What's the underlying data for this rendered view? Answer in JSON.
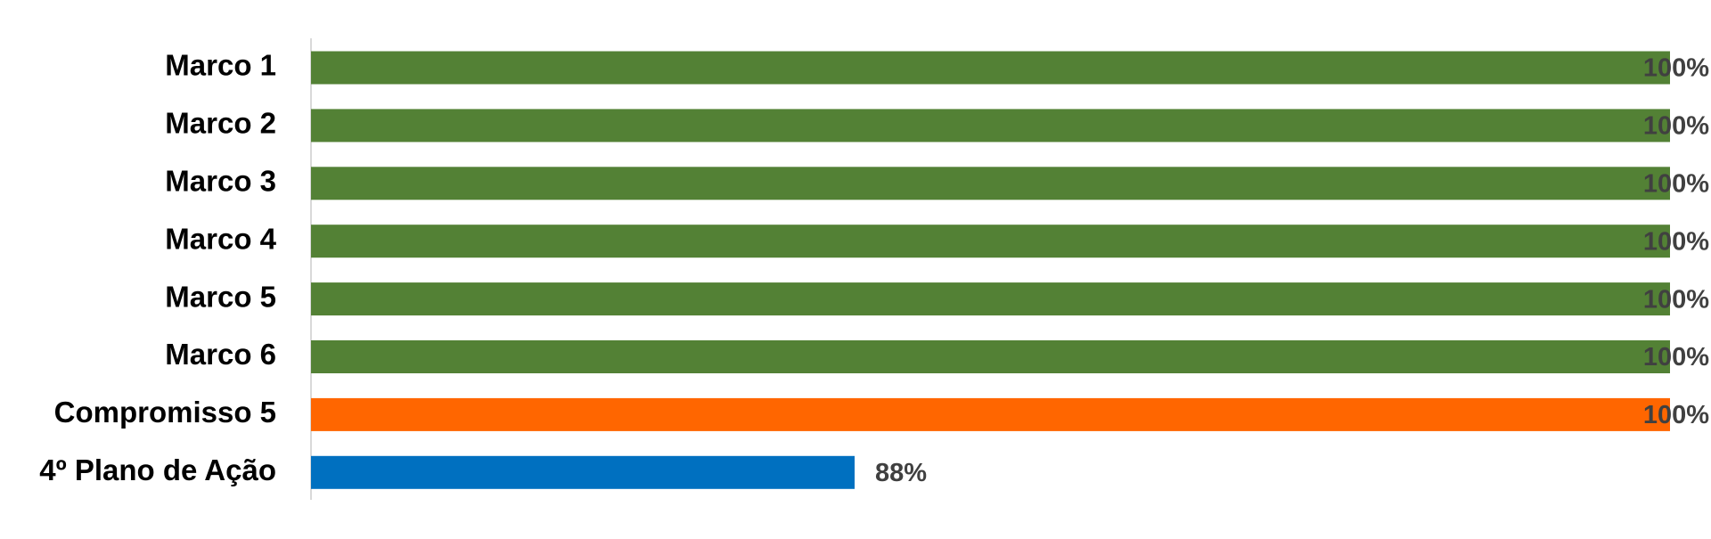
{
  "chart_data": {
    "type": "bar",
    "orientation": "horizontal",
    "categories": [
      "Marco 1",
      "Marco 2",
      "Marco 3",
      "Marco 4",
      "Marco 5",
      "Marco 6",
      "Compromisso 5",
      "4º Plano de Ação"
    ],
    "values": [
      100,
      100,
      100,
      100,
      100,
      100,
      100,
      88
    ],
    "value_labels": [
      "100%",
      "100%",
      "100%",
      "100%",
      "100%",
      "100%",
      "100%",
      "88%"
    ],
    "colors": [
      "#538135",
      "#538135",
      "#538135",
      "#538135",
      "#538135",
      "#538135",
      "#ff6600",
      "#0070c0"
    ],
    "xlim": [
      80,
      100
    ]
  }
}
